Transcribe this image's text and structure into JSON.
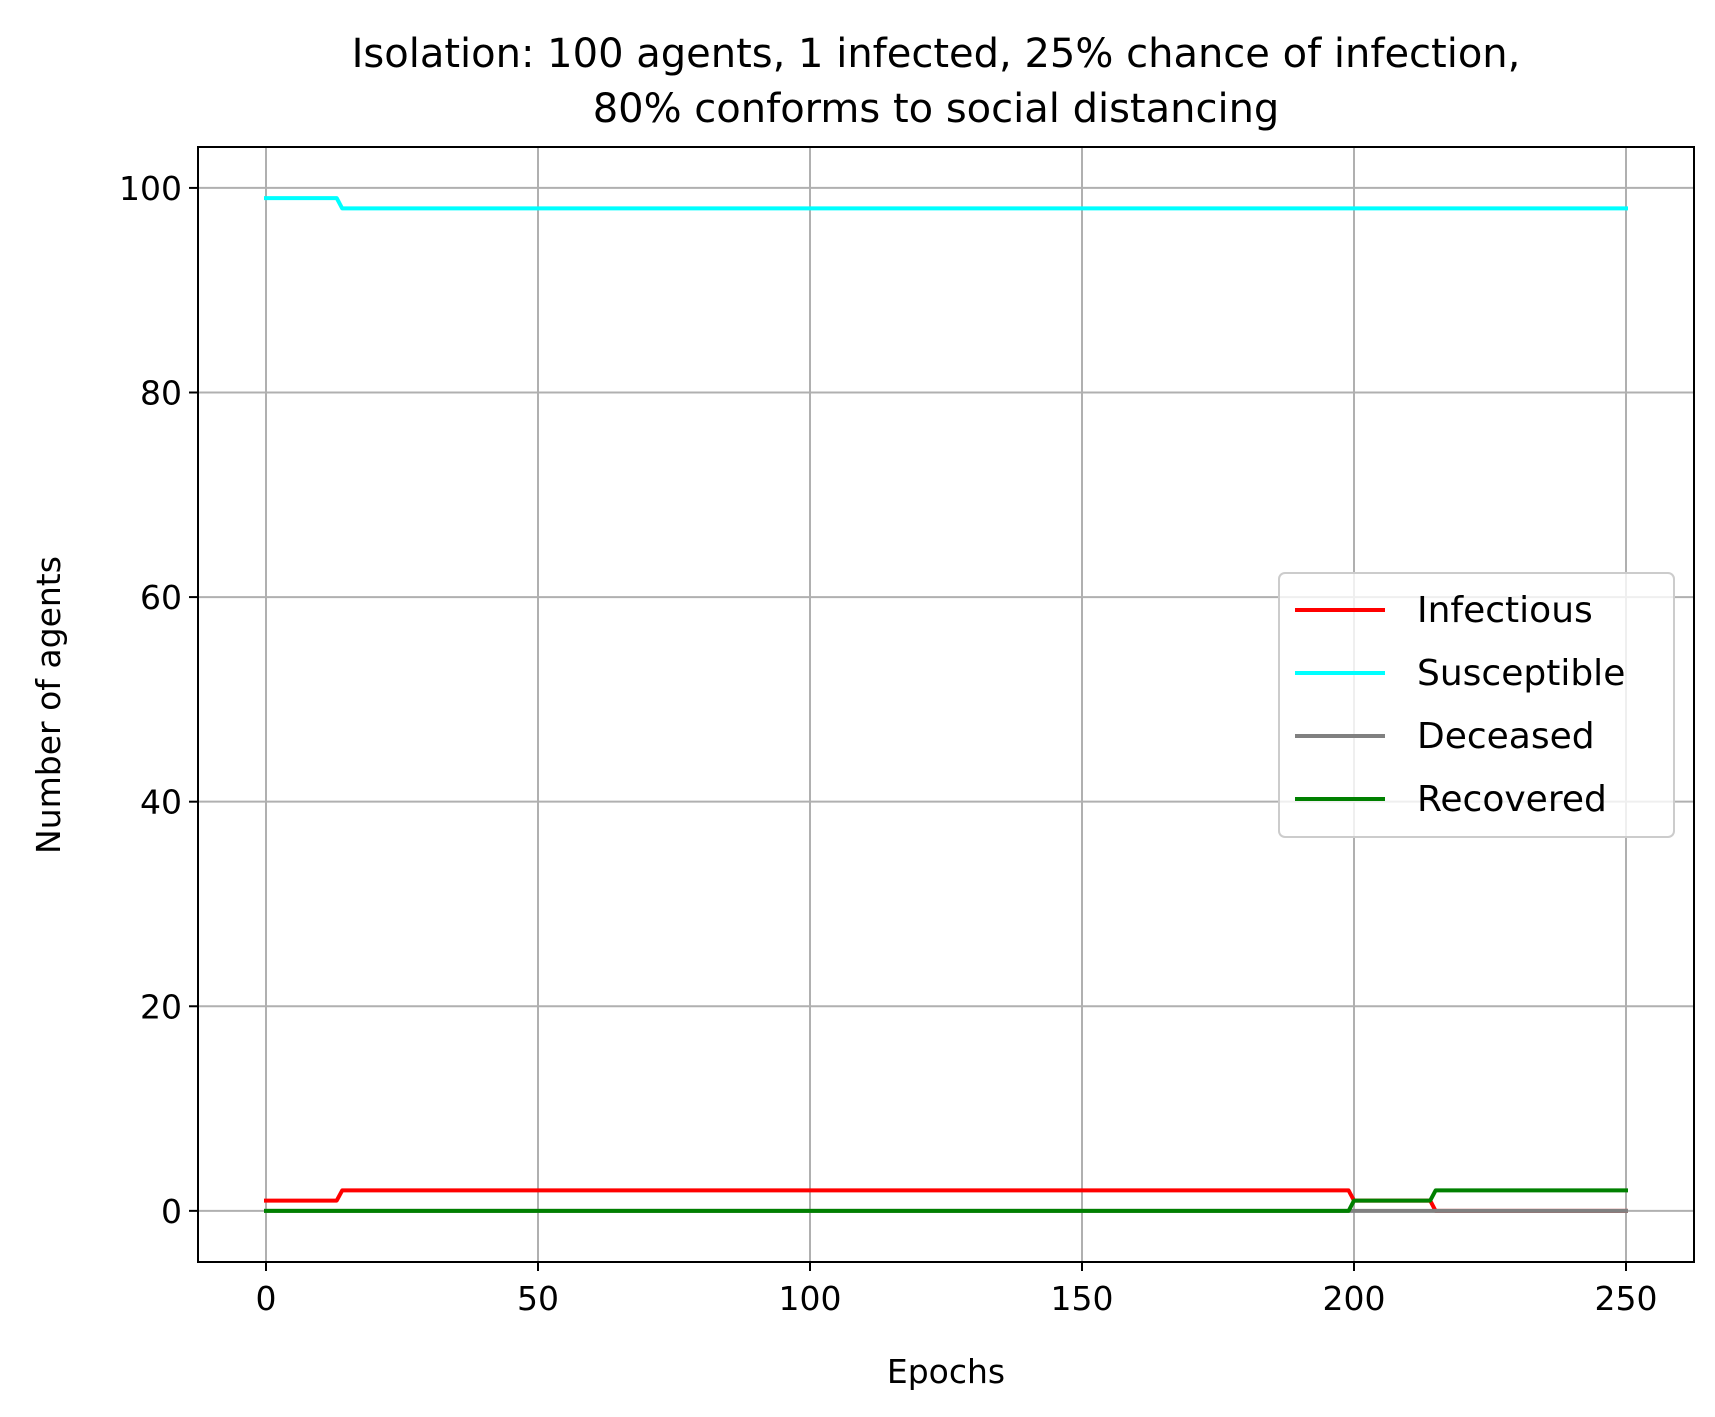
{
  "chart_data": {
    "type": "line",
    "title": "Isolation: 100 agents, 1 infected, 25% chance of infection,",
    "subtitle": "80% conforms to social distancing",
    "xlabel": "Epochs",
    "ylabel": "Number of agents",
    "xlim": [
      -12.5,
      262.5
    ],
    "ylim": [
      -5,
      104
    ],
    "xticks": [
      0,
      50,
      100,
      150,
      200,
      250
    ],
    "yticks": [
      0,
      20,
      40,
      60,
      80,
      100
    ],
    "grid": true,
    "legend_position": "center-right",
    "series": [
      {
        "name": "Infectious",
        "color": "#ff0000",
        "x": [
          0,
          13,
          14,
          199,
          200,
          214,
          215,
          250
        ],
        "y": [
          1,
          1,
          2,
          2,
          1,
          1,
          0,
          0
        ]
      },
      {
        "name": "Susceptible",
        "color": "#00ffff",
        "x": [
          0,
          13,
          14,
          250
        ],
        "y": [
          99,
          99,
          98,
          98
        ]
      },
      {
        "name": "Deceased",
        "color": "#808080",
        "x": [
          0,
          250
        ],
        "y": [
          0,
          0
        ]
      },
      {
        "name": "Recovered",
        "color": "#008000",
        "x": [
          0,
          199,
          200,
          214,
          215,
          250
        ],
        "y": [
          0,
          0,
          1,
          1,
          2,
          2
        ]
      }
    ]
  }
}
